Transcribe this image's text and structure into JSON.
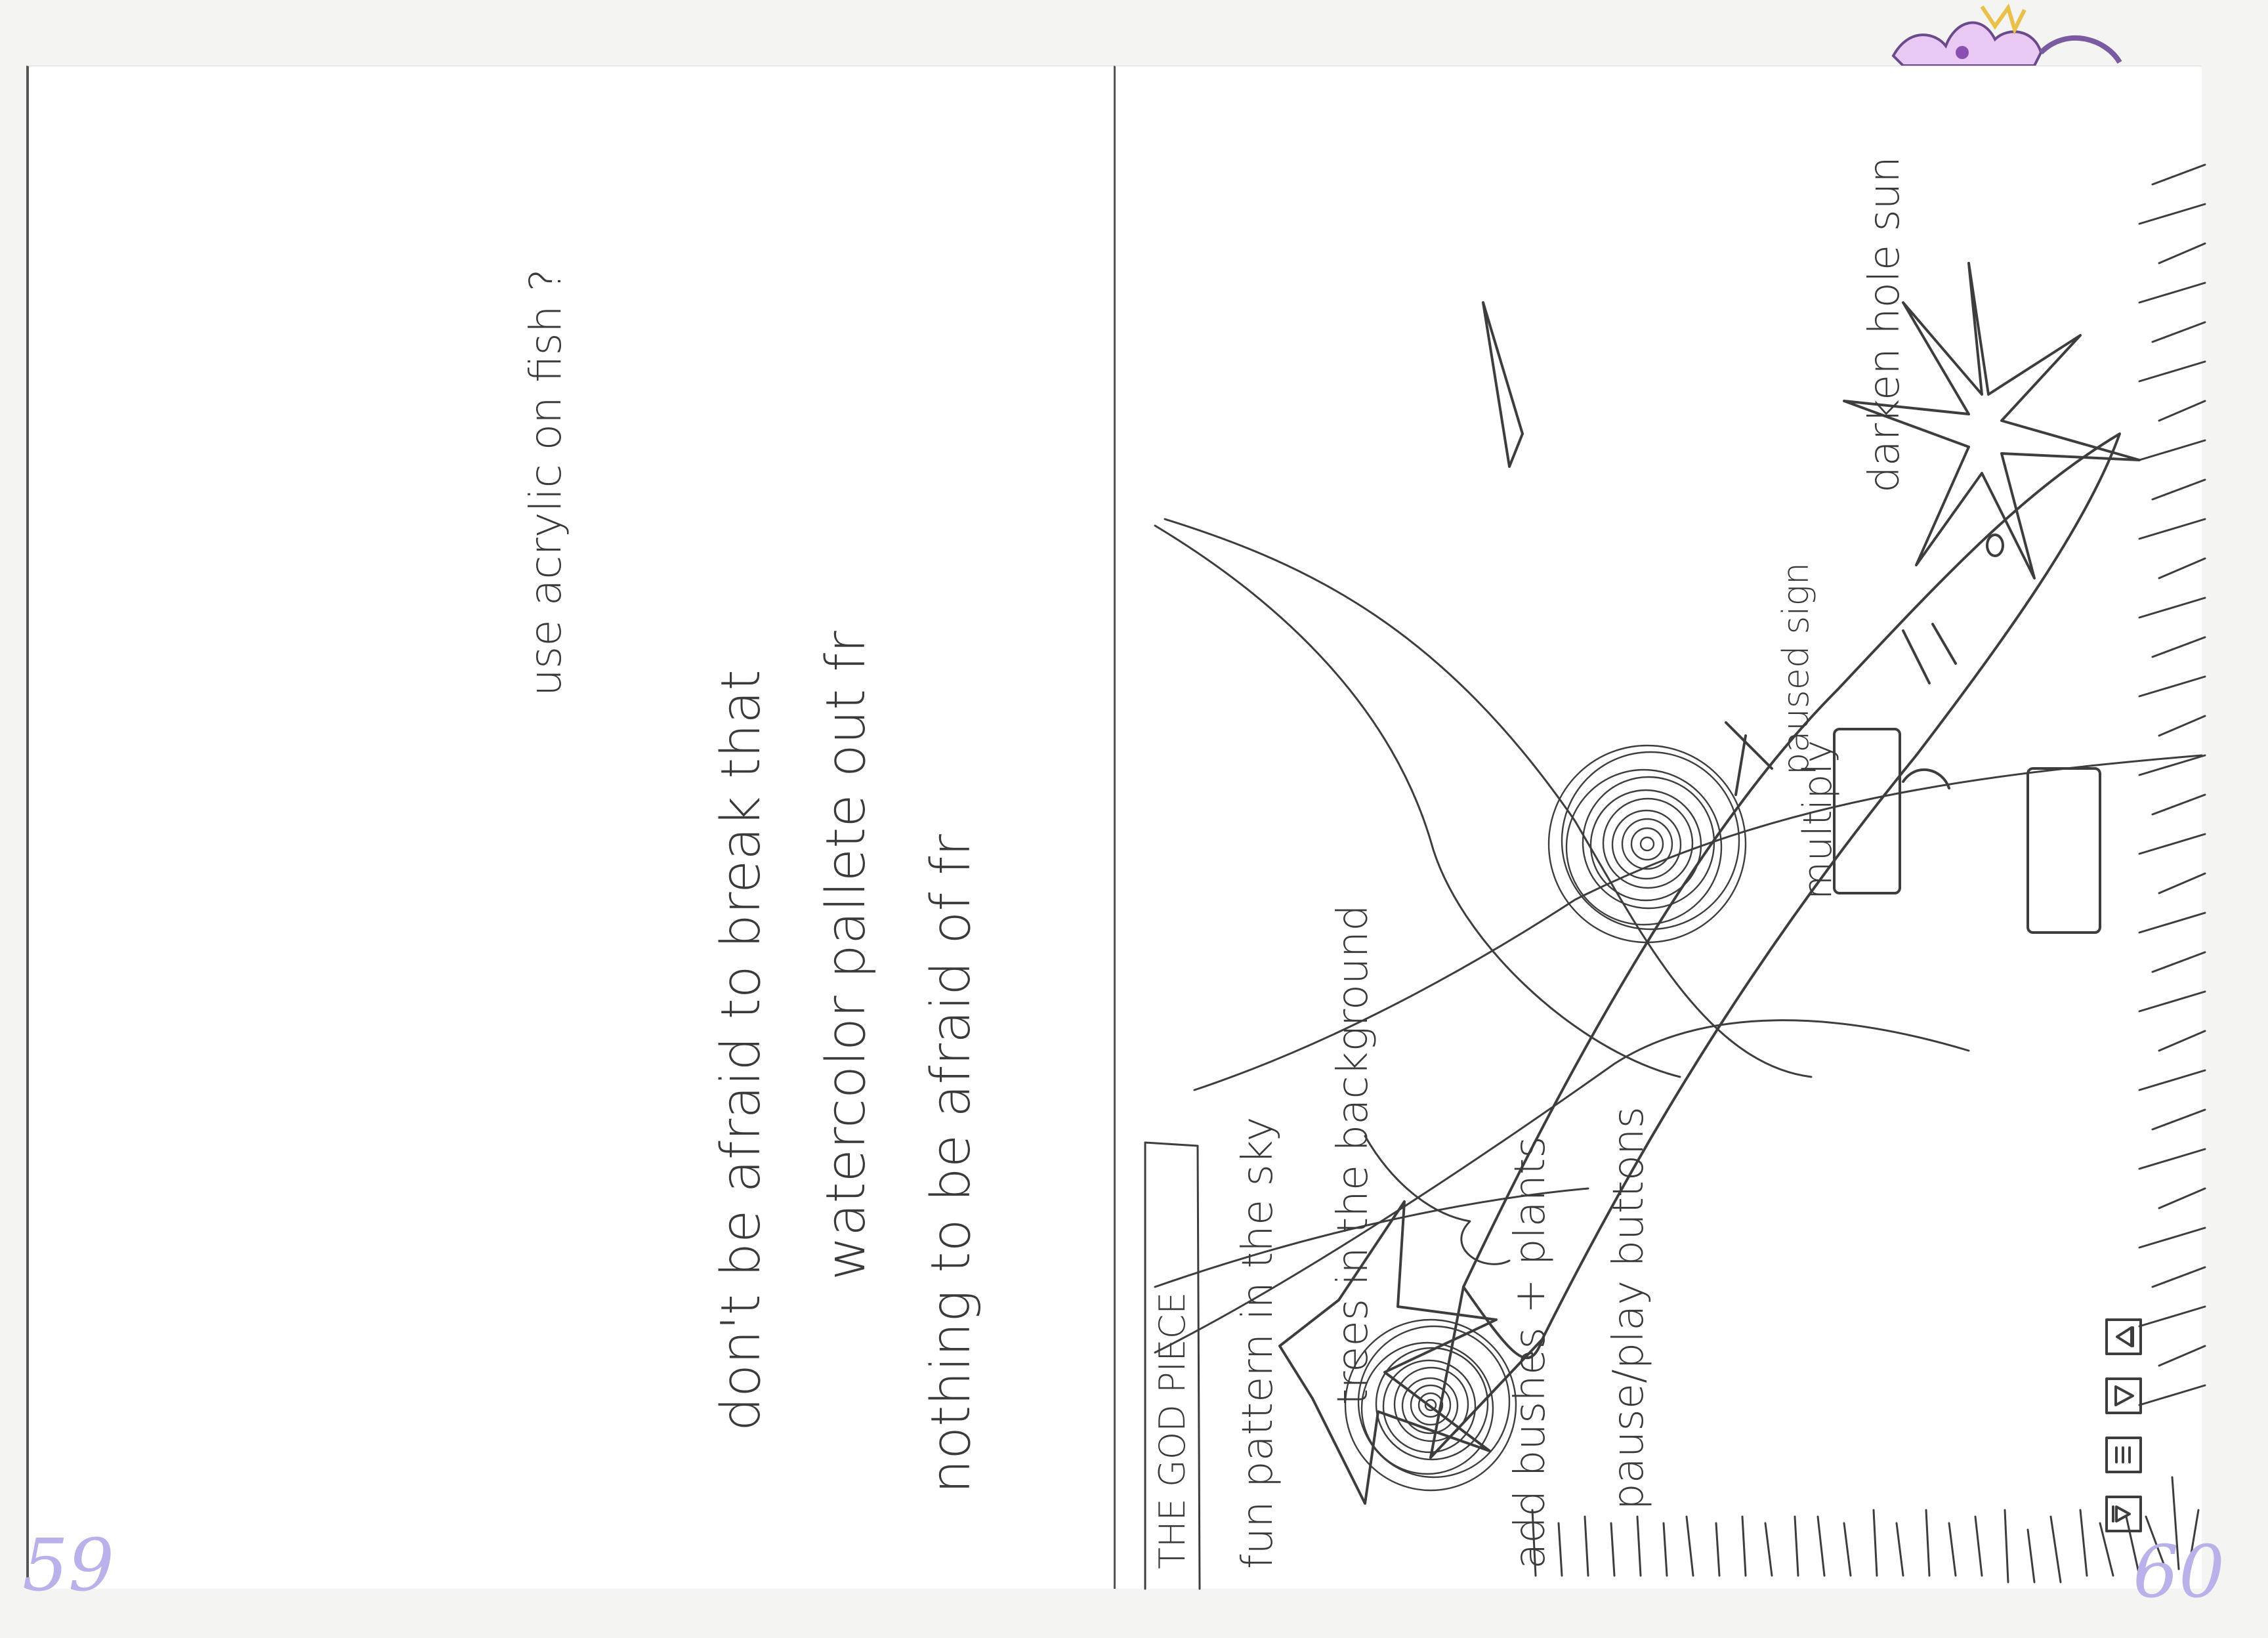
{
  "left_page": {
    "page_number": "59",
    "notes": [
      "use acrylic on fish ?",
      "don't be afraid to break that",
      "watercolor pallete out fr",
      "nothing to be afraid of fr"
    ]
  },
  "right_page": {
    "page_number": "60",
    "title": "THE GOD PIECE",
    "notes": [
      "fun pattern in the sky",
      "trees in the background",
      "add bushes + plants",
      "pause/play buttons",
      "darken hole sun",
      "paused sign",
      "multiply"
    ]
  },
  "colors": {
    "paper": "#ffffff",
    "background": "#f4f4f2",
    "pencil": "#3d3d3d",
    "page_number": "#b9b2ea"
  }
}
